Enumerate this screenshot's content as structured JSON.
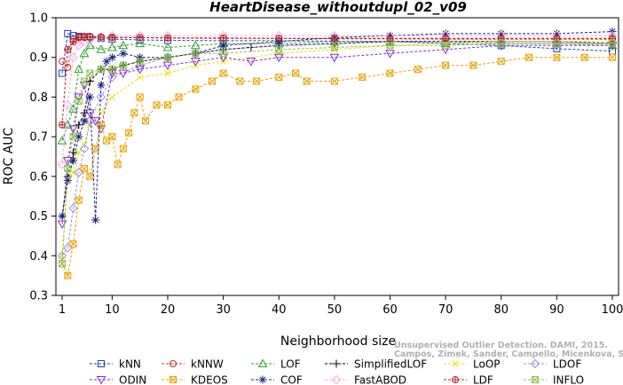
{
  "chart_data": {
    "type": "line",
    "title": "HeartDisease_withoutdupl_02_v09",
    "xlabel": "Neighborhood size",
    "ylabel": "ROC AUC",
    "xlim": [
      1,
      100
    ],
    "ylim": [
      0.3,
      1.0
    ],
    "xticks": [
      1,
      10,
      20,
      30,
      40,
      50,
      60,
      70,
      80,
      90,
      100
    ],
    "yticks": [
      0.3,
      0.4,
      0.5,
      0.6,
      0.7,
      0.8,
      0.9,
      1.0
    ],
    "xtick_labels": [
      "1",
      "10",
      "20",
      "30",
      "40",
      "50",
      "60",
      "70",
      "80",
      "90",
      "100"
    ],
    "ytick_labels": [
      "0.3",
      "0.4",
      "0.5",
      "0.6",
      "0.7",
      "0.8",
      "0.9",
      "1.0"
    ],
    "legend_position": "bottom",
    "series": [
      {
        "name": "kNN",
        "color": "#1f3fbf",
        "marker": "square",
        "x": [
          1,
          2,
          3,
          4,
          5,
          6,
          8,
          10,
          15,
          20,
          30,
          40,
          50,
          60,
          70,
          80,
          90,
          100
        ],
        "y": [
          0.86,
          0.96,
          0.955,
          0.953,
          0.952,
          0.95,
          0.948,
          0.946,
          0.944,
          0.943,
          0.942,
          0.942,
          0.941,
          0.94,
          0.935,
          0.93,
          0.922,
          0.916
        ]
      },
      {
        "name": "kNNW",
        "color": "#d62728",
        "marker": "circle",
        "x": [
          1,
          2,
          3,
          4,
          5,
          6,
          8,
          10,
          15,
          20,
          30,
          40,
          50,
          60,
          70,
          80,
          90,
          100
        ],
        "y": [
          0.89,
          0.875,
          0.945,
          0.952,
          0.953,
          0.953,
          0.952,
          0.951,
          0.95,
          0.949,
          0.948,
          0.948,
          0.947,
          0.947,
          0.946,
          0.946,
          0.946,
          0.946
        ]
      },
      {
        "name": "LOF",
        "color": "#2ca02c",
        "marker": "triangle-up",
        "x": [
          1,
          2,
          3,
          4,
          5,
          6,
          8,
          10,
          12,
          15,
          20,
          25,
          30,
          40,
          50,
          60,
          70,
          80,
          90,
          100
        ],
        "y": [
          0.69,
          0.73,
          0.77,
          0.87,
          0.91,
          0.93,
          0.92,
          0.925,
          0.93,
          0.935,
          0.925,
          0.93,
          0.935,
          0.935,
          0.94,
          0.94,
          0.94,
          0.935,
          0.935,
          0.93
        ]
      },
      {
        "name": "SimplifiedLOF",
        "color": "#000000",
        "marker": "plus",
        "x": [
          1,
          2,
          3,
          4,
          5,
          6,
          8,
          10,
          12,
          15,
          20,
          25,
          30,
          35,
          40,
          50,
          60,
          70,
          80,
          90,
          100
        ],
        "y": [
          0.5,
          0.6,
          0.66,
          0.73,
          0.76,
          0.84,
          0.87,
          0.87,
          0.88,
          0.89,
          0.9,
          0.91,
          0.92,
          0.925,
          0.93,
          0.935,
          0.94,
          0.94,
          0.94,
          0.94,
          0.935
        ]
      },
      {
        "name": "LoOP",
        "color": "#e6e600",
        "marker": "x",
        "x": [
          1,
          2,
          3,
          4,
          5,
          6,
          8,
          10,
          15,
          20,
          25,
          30,
          40,
          50,
          60,
          70,
          80,
          90,
          100
        ],
        "y": [
          0.4,
          0.59,
          0.61,
          0.66,
          0.68,
          0.73,
          0.76,
          0.8,
          0.85,
          0.86,
          0.88,
          0.89,
          0.91,
          0.92,
          0.93,
          0.935,
          0.94,
          0.94,
          0.94
        ]
      },
      {
        "name": "LDOF",
        "color": "#9b8fd8",
        "marker": "diamond",
        "x": [
          1,
          2,
          3,
          4,
          5,
          6,
          8,
          10,
          15,
          20,
          25,
          30,
          40,
          50,
          60,
          70,
          80,
          90,
          100
        ],
        "y": [
          0.4,
          0.42,
          0.52,
          0.61,
          0.67,
          0.74,
          0.8,
          0.85,
          0.88,
          0.9,
          0.91,
          0.92,
          0.93,
          0.935,
          0.94,
          0.94,
          0.94,
          0.94,
          0.935
        ]
      },
      {
        "name": "ODIN",
        "color": "#8e2bc9",
        "marker": "triangle-down",
        "x": [
          1,
          2,
          3,
          4,
          5,
          6,
          7,
          8,
          10,
          12,
          15,
          20,
          25,
          30,
          35,
          40,
          50,
          60,
          70,
          80,
          90,
          100
        ],
        "y": [
          0.48,
          0.64,
          0.72,
          0.8,
          0.83,
          0.76,
          0.74,
          0.72,
          0.86,
          0.86,
          0.87,
          0.88,
          0.89,
          0.9,
          0.89,
          0.9,
          0.9,
          0.91,
          0.92,
          0.93,
          0.93,
          0.93
        ]
      },
      {
        "name": "KDEOS",
        "color": "#e8a400",
        "marker": "square-x",
        "x": [
          1,
          2,
          3,
          4,
          5,
          6,
          7,
          8,
          9,
          10,
          11,
          12,
          13,
          14,
          15,
          16,
          18,
          20,
          22,
          25,
          28,
          30,
          33,
          36,
          40,
          43,
          45,
          50,
          55,
          60,
          65,
          70,
          75,
          80,
          85,
          90,
          95,
          100
        ],
        "y": [
          0.38,
          0.35,
          0.43,
          0.54,
          0.62,
          0.6,
          0.67,
          0.73,
          0.69,
          0.7,
          0.63,
          0.67,
          0.71,
          0.76,
          0.8,
          0.74,
          0.78,
          0.78,
          0.8,
          0.82,
          0.84,
          0.86,
          0.84,
          0.84,
          0.85,
          0.86,
          0.84,
          0.84,
          0.85,
          0.86,
          0.87,
          0.88,
          0.88,
          0.89,
          0.9,
          0.9,
          0.9,
          0.9
        ]
      },
      {
        "name": "COF",
        "color": "#1a237e",
        "marker": "asterisk",
        "x": [
          1,
          2,
          3,
          4,
          5,
          6,
          7,
          8,
          9,
          10,
          12,
          15,
          20,
          25,
          30,
          40,
          50,
          60,
          70,
          80,
          90,
          100
        ],
        "y": [
          0.5,
          0.59,
          0.64,
          0.7,
          0.74,
          0.8,
          0.49,
          0.83,
          0.89,
          0.9,
          0.91,
          0.9,
          0.9,
          0.91,
          0.93,
          0.94,
          0.95,
          0.955,
          0.96,
          0.96,
          0.96,
          0.965
        ]
      },
      {
        "name": "FastABOD",
        "color": "#f4a6e8",
        "marker": "diamond",
        "x": [
          1,
          2,
          3,
          4,
          5,
          6,
          8,
          10,
          15,
          20,
          30,
          40,
          50,
          60,
          70,
          80,
          90,
          100
        ],
        "y": [
          0.63,
          0.78,
          0.9,
          0.93,
          0.94,
          0.945,
          0.95,
          0.955,
          0.955,
          0.955,
          0.955,
          0.955,
          0.955,
          0.955,
          0.955,
          0.955,
          0.955,
          0.955
        ]
      },
      {
        "name": "LDF",
        "color": "#b22222",
        "marker": "circle-plus",
        "x": [
          1,
          2,
          3,
          4,
          5,
          6,
          8,
          10,
          15,
          20,
          30,
          40,
          50,
          60,
          70,
          80,
          90,
          100
        ],
        "y": [
          0.73,
          0.92,
          0.94,
          0.95,
          0.95,
          0.952,
          0.951,
          0.95,
          0.95,
          0.949,
          0.949,
          0.948,
          0.948,
          0.948,
          0.948,
          0.948,
          0.948,
          0.948
        ]
      },
      {
        "name": "INFLO",
        "color": "#8bc34a",
        "marker": "square-x",
        "x": [
          1,
          2,
          3,
          4,
          5,
          6,
          8,
          10,
          12,
          15,
          20,
          25,
          30,
          40,
          50,
          60,
          70,
          80,
          90,
          100
        ],
        "y": [
          0.38,
          0.62,
          0.7,
          0.79,
          0.84,
          0.86,
          0.87,
          0.87,
          0.88,
          0.89,
          0.9,
          0.91,
          0.91,
          0.92,
          0.925,
          0.93,
          0.93,
          0.935,
          0.935,
          0.935
        ]
      }
    ],
    "legend_rows": [
      [
        "kNN",
        "kNNW",
        "LOF",
        "SimplifiedLOF",
        "LoOP",
        "LDOF"
      ],
      [
        "ODIN",
        "KDEOS",
        "COF",
        "FastABOD",
        "LDF",
        "INFLO"
      ]
    ]
  },
  "watermark": {
    "line1": "Campos, Zimek, Sander, Campello, Micenkova, Schubert, Assent, Houle",
    "line2": "Unsupervised Outlier Detection. DAMI, 2015."
  }
}
